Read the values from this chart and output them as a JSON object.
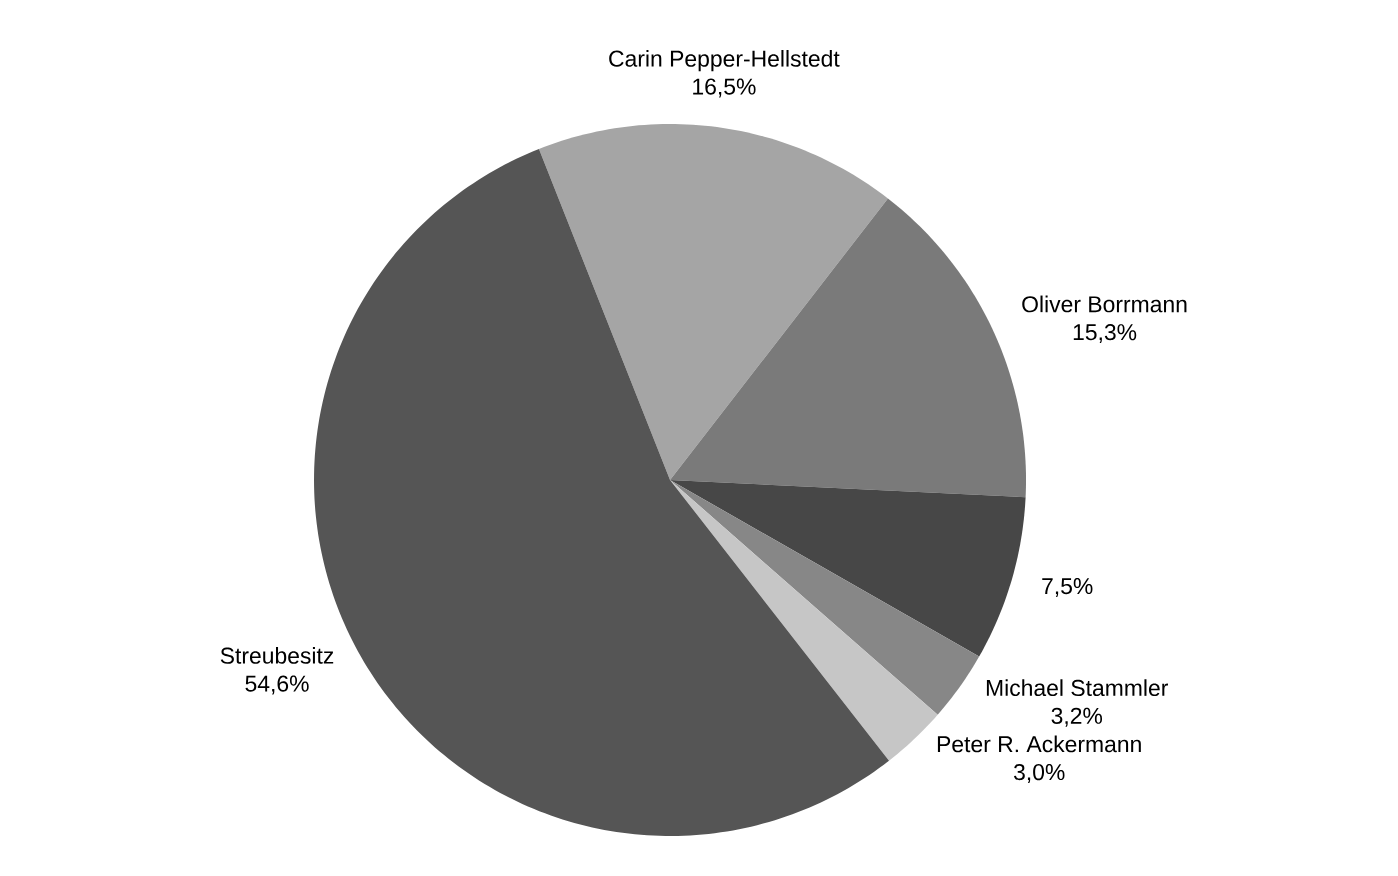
{
  "chart_data": {
    "type": "pie",
    "categories": [
      "Carin Pepper-Hellstedt",
      "Oliver Borrmann",
      null,
      "Michael Stammler",
      "Peter R. Ackermann",
      "Streubesitz"
    ],
    "values": [
      16.5,
      15.3,
      7.5,
      3.2,
      3.0,
      54.6
    ],
    "value_labels": [
      "16,5%",
      "15,3%",
      "7,5%",
      "3,2%",
      "3,0%",
      "54,6%"
    ],
    "colors": [
      "#a5a5a5",
      "#7a7a7a",
      "#474747",
      "#878787",
      "#c6c6c6",
      "#555555"
    ]
  }
}
